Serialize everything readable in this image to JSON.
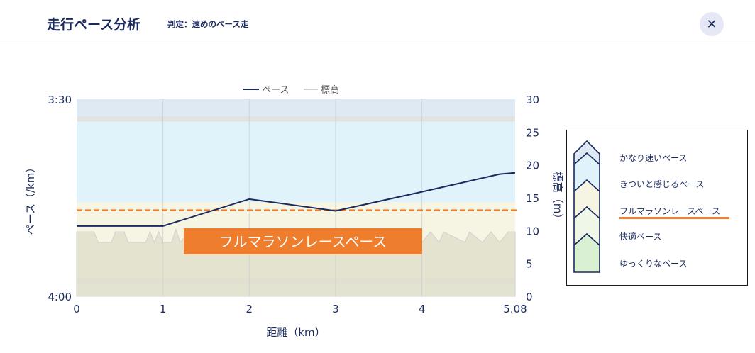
{
  "header": {
    "title": "走行ペース分析",
    "verdict": "判定：速めのペース走",
    "close_label": "✕"
  },
  "colors": {
    "navy": "#1a2a5e",
    "orange": "#ee7d2d",
    "zone_very_fast": "#dfe9f3",
    "zone_hard": "#e0f3fa",
    "zone_marathon": "#f6f4e2",
    "zone_easy": "#eef7e8",
    "elevation_fill": "#e0dfcc",
    "elevation_line": "#d0d0d0"
  },
  "chart_data": {
    "type": "line",
    "legend": [
      "ペース",
      "標高"
    ],
    "xlabel": "距離（km）",
    "ylabel_left": "ペース（/km）",
    "ylabel_right": "標高（m）",
    "x_ticks": [
      "0",
      "1",
      "2",
      "3",
      "4",
      "5.08"
    ],
    "x_tick_values": [
      0,
      1,
      2,
      3,
      4,
      5.08
    ],
    "xlim": [
      0,
      5.08
    ],
    "y_left_ticks": [
      "3:30",
      "4:00"
    ],
    "y_left_range_sec": [
      210,
      240
    ],
    "y_right_ticks": [
      "30",
      "25",
      "20",
      "15",
      "10",
      "5",
      "0"
    ],
    "y_right_range": [
      0,
      30
    ],
    "pace_series": {
      "name": "ペース",
      "x": [
        0,
        1,
        2,
        3,
        4,
        4.9,
        5.08
      ],
      "pace_sec": [
        229.3,
        229.3,
        225.2,
        227.0,
        224.1,
        221.4,
        221.2
      ]
    },
    "target_pace": {
      "label": "フルマラソンレースペース",
      "pace_sec": 226.9
    },
    "elevation_series": {
      "name": "標高",
      "x": [
        0,
        0.2,
        0.25,
        0.4,
        0.45,
        0.55,
        0.6,
        0.8,
        0.85,
        0.9,
        0.95,
        1.0,
        1.1,
        1.15,
        1.2,
        1.3,
        1.6,
        2.0,
        2.5,
        2.9,
        2.95,
        3.0,
        3.05,
        3.1,
        3.5,
        3.95,
        4.0,
        4.1,
        4.2,
        4.25,
        4.5,
        4.55,
        4.7,
        4.8,
        4.9,
        5.0,
        5.08
      ],
      "values": [
        9.8,
        9.8,
        8.2,
        8.2,
        9.8,
        9.8,
        8.2,
        8.2,
        9.8,
        8.2,
        9.8,
        8.2,
        8.2,
        10.2,
        8.2,
        9.8,
        9.8,
        9.8,
        9.8,
        9.8,
        8.2,
        9.8,
        8.2,
        9.8,
        9.8,
        9.8,
        8.2,
        9.8,
        8.2,
        9.8,
        8.2,
        9.8,
        8.2,
        9.8,
        8.2,
        9.8,
        9.8
      ]
    },
    "zones": [
      {
        "label": "かなり速いペース",
        "from_sec": 210,
        "to_sec": 212.6
      },
      {
        "label": "きついと感じるペース",
        "from_sec": 213.4,
        "to_sec": 225.7
      },
      {
        "label": "フルマラソンレースペース",
        "from_sec": 225.7,
        "to_sec": 237.2,
        "current": true
      },
      {
        "label": "快適ペース",
        "from_sec": 238.0,
        "to_sec": 240
      },
      {
        "label": "ゆっくりなペース"
      }
    ]
  }
}
